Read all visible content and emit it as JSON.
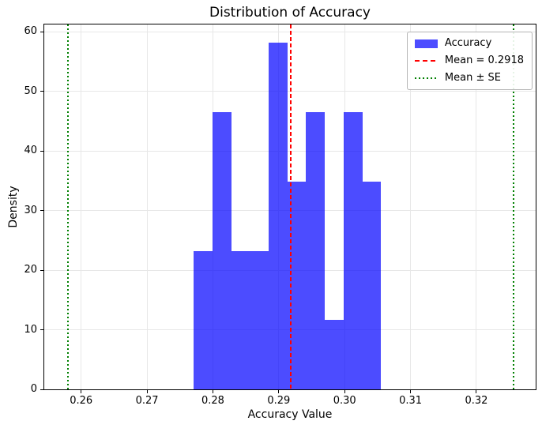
{
  "figure": {
    "title": "Distribution of Accuracy",
    "xlabel": "Accuracy Value",
    "ylabel": "Density"
  },
  "legend": {
    "position": "upper right",
    "items": [
      {
        "label": "Accuracy",
        "type": "patch",
        "color": "#0000ff",
        "alpha": 0.7
      },
      {
        "label": "Mean = 0.2918",
        "type": "dashed-line",
        "color": "#ff0000"
      },
      {
        "label": "Mean ± SE",
        "type": "dotted-line",
        "color": "#008000"
      }
    ]
  },
  "chart_data": {
    "type": "bar",
    "subtype": "histogram",
    "title": "Distribution of Accuracy",
    "xlabel": "Accuracy Value",
    "ylabel": "Density",
    "series_label": "Accuracy",
    "bin_edges": [
      0.2771,
      0.27994,
      0.28278,
      0.28563,
      0.28847,
      0.29131,
      0.29415,
      0.29699,
      0.29984,
      0.30268,
      0.30552
    ],
    "densities": [
      23.2,
      46.5,
      23.2,
      23.2,
      58.1,
      34.9,
      46.5,
      11.6,
      46.5,
      34.9
    ],
    "mean_line": {
      "value": 0.2918,
      "label": "Mean = 0.2918",
      "color": "#ff0000",
      "style": "dashed"
    },
    "se_lines": {
      "values": [
        0.258,
        0.3256
      ],
      "label": "Mean ± SE",
      "color": "#008000",
      "style": "dotted"
    },
    "xlim": [
      0.2544,
      0.329
    ],
    "ylim": [
      0,
      61.2
    ],
    "xticks": [
      0.26,
      0.27,
      0.28,
      0.29,
      0.3,
      0.31,
      0.32
    ],
    "xtick_labels": [
      "0.26",
      "0.27",
      "0.28",
      "0.29",
      "0.30",
      "0.31",
      "0.32"
    ],
    "yticks": [
      0,
      10,
      20,
      30,
      40,
      50,
      60
    ],
    "ytick_labels": [
      "0",
      "10",
      "20",
      "30",
      "40",
      "50",
      "60"
    ],
    "grid": true,
    "grid_color": "#e7e7e7",
    "bar_color": "#0000ff",
    "bar_alpha": 0.7,
    "legend_position": "upper right"
  }
}
